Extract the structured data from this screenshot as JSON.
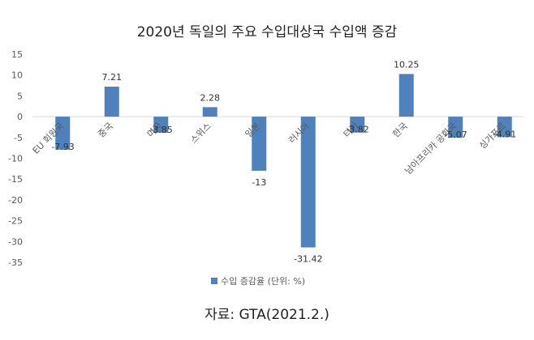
{
  "chart_data": {
    "type": "bar",
    "title": "2020년 독일의 주요 수입대상국 수입액 증감",
    "categories": [
      "EU 회원국",
      "중국",
      "미국",
      "스위스",
      "일본",
      "러시아",
      "터키",
      "한국",
      "남아프리카 공화국",
      "싱가포르"
    ],
    "series": [
      {
        "name": "수입 증감율 (단위: %)",
        "values": [
          -7.93,
          7.21,
          -3.85,
          2.28,
          -13,
          -31.42,
          -3.82,
          10.25,
          -5.07,
          -4.91
        ],
        "value_labels": [
          "-7.93",
          "7.21",
          "-3.85",
          "2.28",
          "-13",
          "-31.42",
          "-3.82",
          "10.25",
          "-5.07",
          "-4.91"
        ]
      }
    ],
    "ylim": [
      -35,
      15
    ],
    "yticks": [
      15,
      10,
      5,
      0,
      -5,
      -10,
      -15,
      -20,
      -25,
      -30,
      -35
    ],
    "grid": false,
    "legend_position": "bottom",
    "colors": {
      "bar": "#4f81bd",
      "axis": "#d9d9d9",
      "text": "#595959"
    }
  },
  "caption": "자료: GTA(2021.2.)"
}
